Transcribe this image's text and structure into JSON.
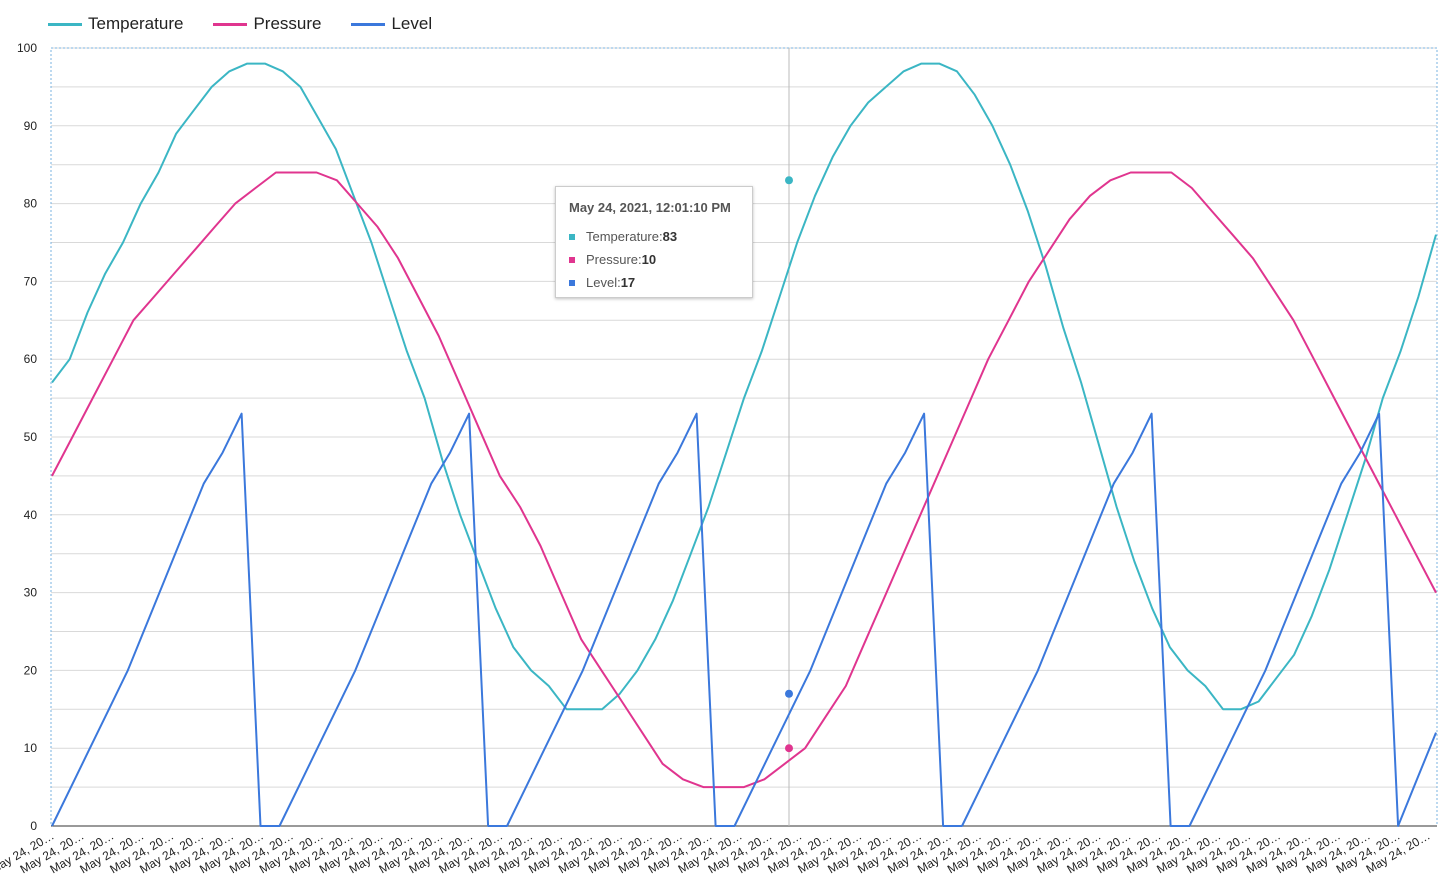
{
  "chart_data": {
    "type": "line",
    "ylim": [
      0,
      100
    ],
    "yticks": [
      0,
      10,
      20,
      30,
      40,
      50,
      60,
      70,
      80,
      90,
      100
    ],
    "x_tick_label": "May 24, 20…",
    "x_tick_count": 47,
    "legend_position": "top-left",
    "grid": true,
    "series": [
      {
        "name": "Temperature",
        "color": "#3bb6c4",
        "values": [
          57,
          60,
          66,
          71,
          75,
          80,
          84,
          89,
          92,
          95,
          97,
          98,
          98,
          97,
          95,
          91,
          87,
          81,
          75,
          68,
          61,
          55,
          47,
          40,
          34,
          28,
          23,
          20,
          18,
          15,
          15,
          15,
          17,
          20,
          24,
          29,
          35,
          41,
          48,
          55,
          61,
          68,
          75,
          81,
          86,
          90,
          93,
          95,
          97,
          98,
          98,
          97,
          94,
          90,
          85,
          79,
          72,
          64,
          57,
          49,
          41,
          34,
          28,
          23,
          20,
          18,
          15,
          15,
          16,
          19,
          22,
          27,
          33,
          40,
          47,
          55,
          61,
          68,
          76
        ]
      },
      {
        "name": "Pressure",
        "color": "#e0358f",
        "values": [
          45,
          50,
          55,
          60,
          65,
          68,
          71,
          74,
          77,
          80,
          82,
          84,
          84,
          84,
          83,
          80,
          77,
          73,
          68,
          63,
          57,
          51,
          45,
          41,
          36,
          30,
          24,
          20,
          16,
          12,
          8,
          6,
          5,
          5,
          5,
          6,
          8,
          10,
          14,
          18,
          24,
          30,
          36,
          42,
          48,
          54,
          60,
          65,
          70,
          74,
          78,
          81,
          83,
          84,
          84,
          84,
          82,
          79,
          76,
          73,
          69,
          65,
          60,
          55,
          50,
          45,
          40,
          35,
          30
        ],
        "x_offset": 0
      },
      {
        "name": "Level",
        "color": "#3b78dc",
        "values": []
      }
    ],
    "tooltip": {
      "title": "May 24, 2021, 12:01:10 PM",
      "rows": [
        {
          "label": "Temperature: ",
          "value": "83",
          "color": "#3bb6c4"
        },
        {
          "label": "Pressure: ",
          "value": "10",
          "color": "#e0358f"
        },
        {
          "label": "Level: ",
          "value": "17",
          "color": "#3b78dc"
        }
      ]
    }
  }
}
